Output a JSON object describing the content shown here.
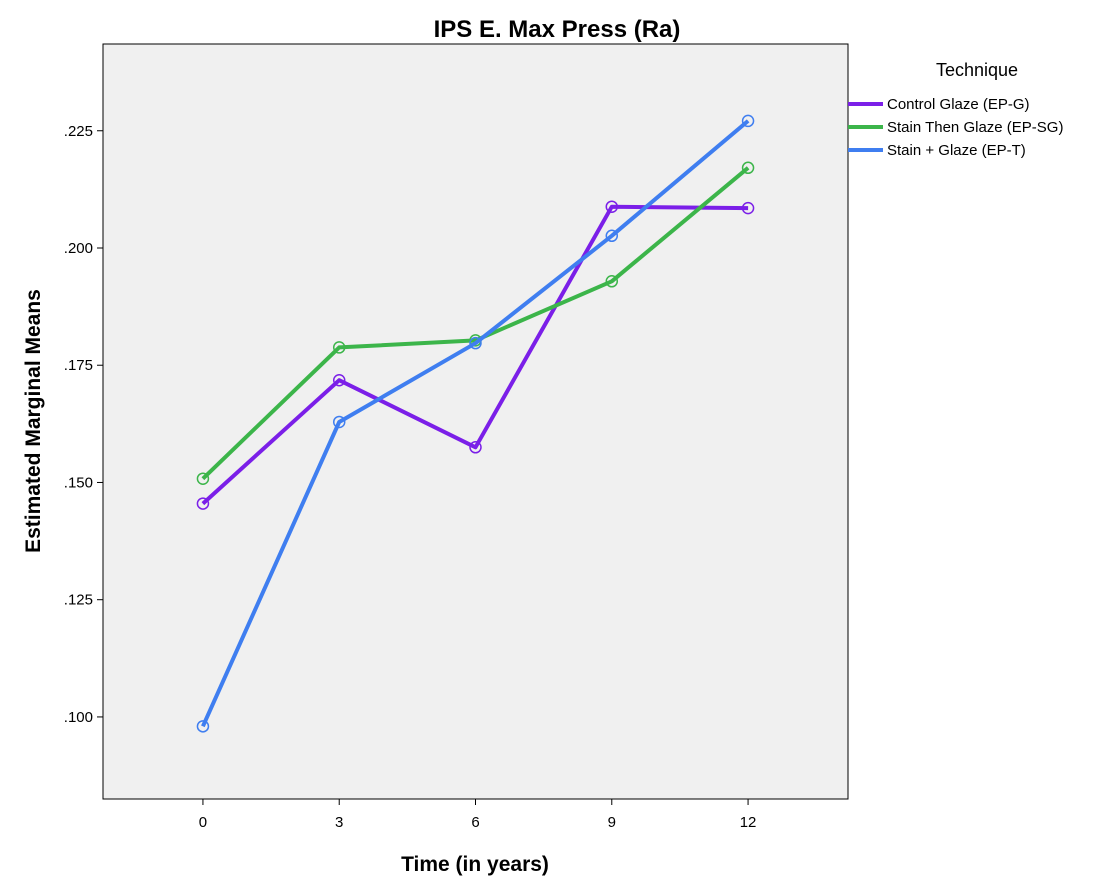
{
  "chart_data": {
    "type": "line",
    "title": "IPS E. Max Press (Ra)",
    "xlabel": "Time (in years)",
    "ylabel": "Estimated Marginal Means",
    "x": [
      0,
      3,
      6,
      9,
      12
    ],
    "x_tick_labels": [
      "0",
      "3",
      "6",
      "9",
      "12"
    ],
    "xlim": [
      -2.2,
      14.2
    ],
    "ylim": [
      0.0825,
      0.2435
    ],
    "y_ticks": [
      0.1,
      0.125,
      0.15,
      0.175,
      0.2,
      0.225
    ],
    "y_tick_labels": [
      ".100",
      ".125",
      ".150",
      ".175",
      ".200",
      ".225"
    ],
    "legend_title": "Technique",
    "legend_placement": "right",
    "grid": false,
    "plot_background": "#f0f0f0",
    "series": [
      {
        "name": "Control Glaze (EP-G)",
        "color": "#7b1fe8",
        "values": [
          0.1455,
          0.1718,
          0.1575,
          0.2088,
          0.2085
        ]
      },
      {
        "name": "Stain Then Glaze (EP-SG)",
        "color": "#3cb54a",
        "values": [
          0.1508,
          0.1788,
          0.1803,
          0.1929,
          0.2171
        ]
      },
      {
        "name": "Stain + Glaze (EP-T)",
        "color": "#3f7ef0",
        "values": [
          0.098,
          0.1629,
          0.1797,
          0.2026,
          0.2271
        ]
      }
    ]
  }
}
